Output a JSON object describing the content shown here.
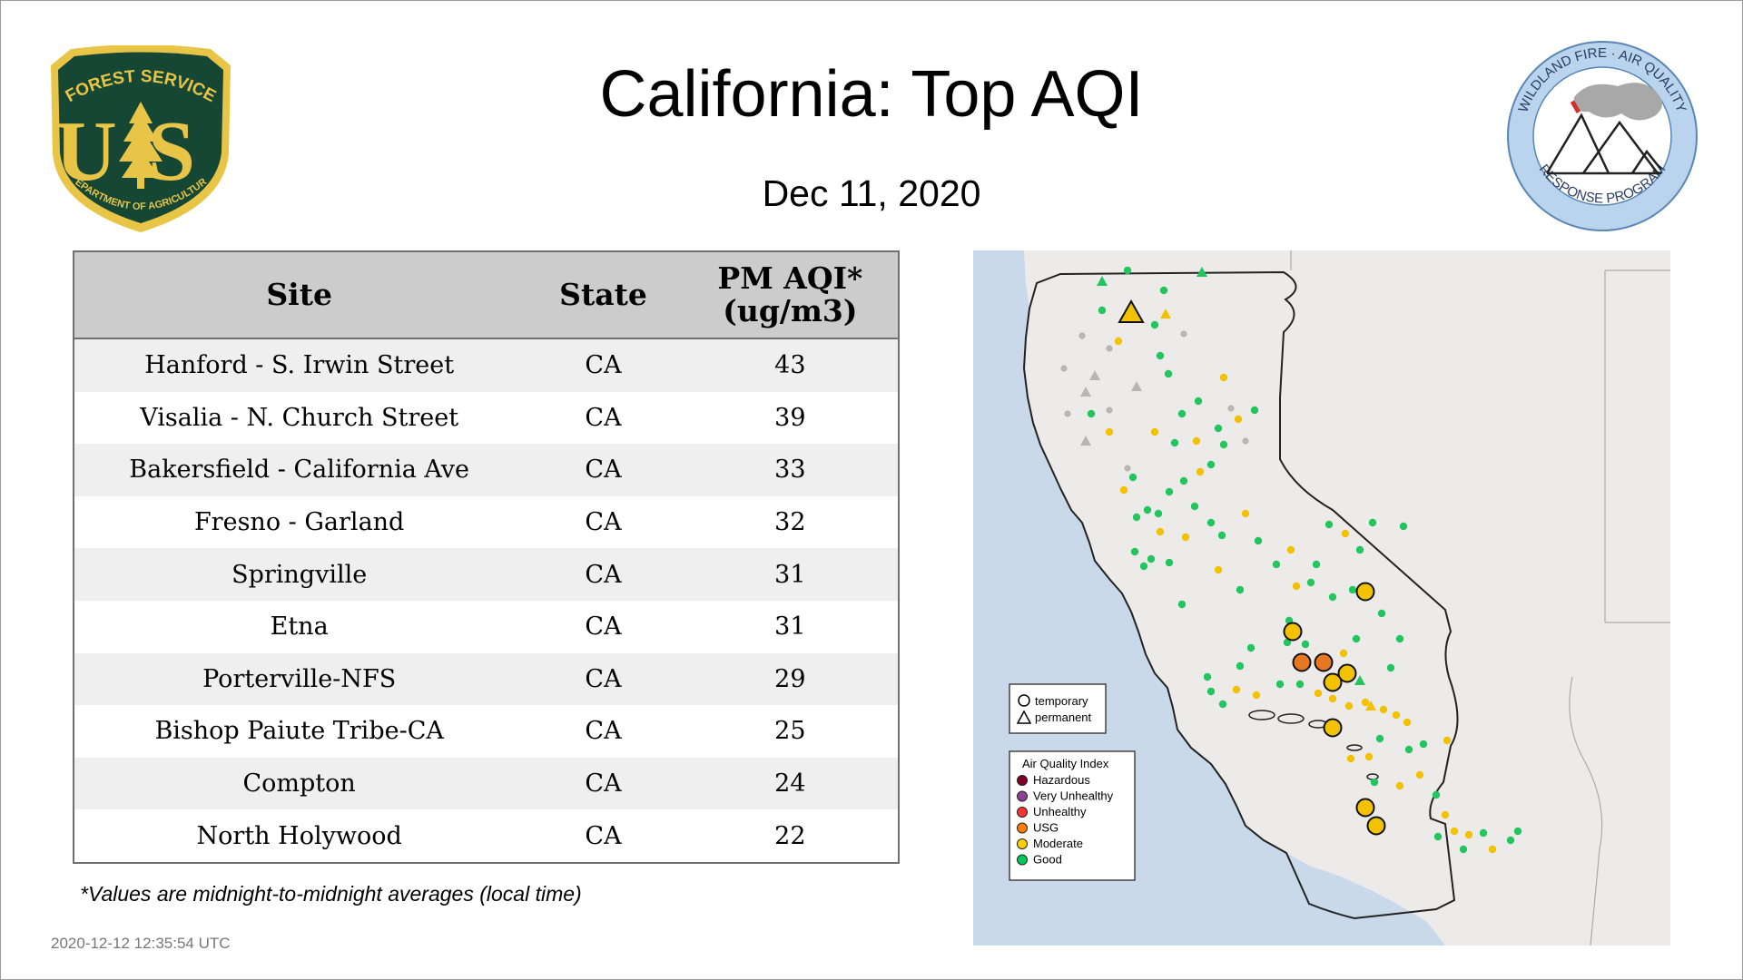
{
  "header": {
    "title": "California: Top AQI",
    "date": "Dec 11, 2020"
  },
  "logos": {
    "usfs": {
      "top_text": "FOREST SERVICE",
      "letters": "US",
      "bottom_text": "DEPARTMENT OF AGRICULTURE"
    },
    "wildland": {
      "ring_top": "WILDLAND FIRE · AIR QUALITY",
      "ring_bottom": "RESPONSE PROGRAM"
    }
  },
  "table": {
    "headers": {
      "site": "Site",
      "state": "State",
      "pm_line1": "PM AQI*",
      "pm_line2": "(ug/m3)"
    },
    "rows": [
      {
        "site": "Hanford - S. Irwin Street",
        "state": "CA",
        "value": "43"
      },
      {
        "site": "Visalia - N. Church Street",
        "state": "CA",
        "value": "39"
      },
      {
        "site": "Bakersfield - California Ave",
        "state": "CA",
        "value": "33"
      },
      {
        "site": "Fresno - Garland",
        "state": "CA",
        "value": "32"
      },
      {
        "site": "Springville",
        "state": "CA",
        "value": "31"
      },
      {
        "site": "Etna",
        "state": "CA",
        "value": "31"
      },
      {
        "site": "Porterville-NFS",
        "state": "CA",
        "value": "29"
      },
      {
        "site": "Bishop Paiute Tribe-CA",
        "state": "CA",
        "value": "25"
      },
      {
        "site": "Compton",
        "state": "CA",
        "value": "24"
      },
      {
        "site": "North Holywood",
        "state": "CA",
        "value": "22"
      }
    ]
  },
  "footnote": "*Values are midnight-to-midnight averages (local time)",
  "timestamp": "2020-12-12 12:35:54 UTC",
  "map": {
    "shape_legend": {
      "temporary": "temporary",
      "permanent": "permanent"
    },
    "aqi_legend": {
      "title": "Air Quality Index",
      "items": [
        {
          "label": "Hazardous",
          "color": "#7e0023"
        },
        {
          "label": "Very Unhealthy",
          "color": "#8f3f97"
        },
        {
          "label": "Unhealthy",
          "color": "#ff3333"
        },
        {
          "label": "USG",
          "color": "#ff7e00"
        },
        {
          "label": "Moderate",
          "color": "#ffd000"
        },
        {
          "label": "Good",
          "color": "#00c85a"
        }
      ]
    },
    "colors": {
      "water": "#c9d9ea",
      "land": "#ecebea",
      "moderate": "#f2c200",
      "usg": "#e87722",
      "good": "#22c55e"
    }
  }
}
